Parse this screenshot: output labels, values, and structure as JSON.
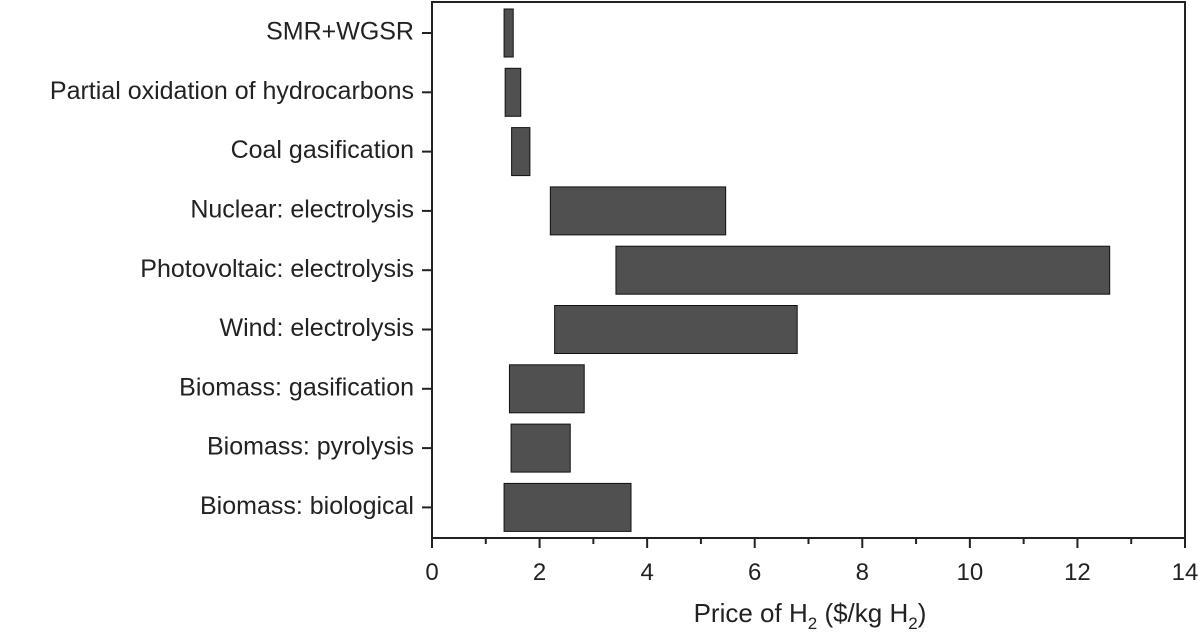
{
  "chart_data": {
    "type": "bar",
    "orientation": "horizontal-range",
    "title": "",
    "xlabel": {
      "prefix": "Price of H",
      "sub1": "2",
      "middle": " ($/kg H",
      "sub2": "2",
      "suffix": ")"
    },
    "ylabel": "",
    "xlim": [
      0,
      14
    ],
    "x_ticks": [
      "0",
      "2",
      "4",
      "6",
      "8",
      "10",
      "12",
      "14"
    ],
    "grid": false,
    "bar_color": "#505050",
    "categories": [
      "SMR+WGSR",
      "Partial oxidation of hydrocarbons",
      "Coal gasification",
      "Nuclear: electrolysis",
      "Photovoltaic: electrolysis",
      "Wind: electrolysis",
      "Biomass: gasification",
      "Biomass: pyrolysis",
      "Biomass: biological"
    ],
    "ranges": [
      [
        1.34,
        1.51
      ],
      [
        1.36,
        1.65
      ],
      [
        1.48,
        1.82
      ],
      [
        2.2,
        5.46
      ],
      [
        3.42,
        12.6
      ],
      [
        2.28,
        6.79
      ],
      [
        1.44,
        2.83
      ],
      [
        1.47,
        2.57
      ],
      [
        1.34,
        3.7
      ]
    ]
  }
}
